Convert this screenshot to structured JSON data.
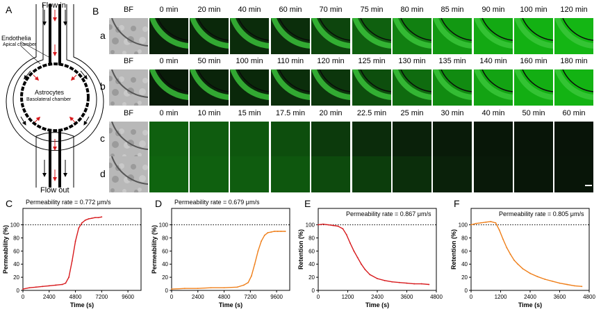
{
  "panelA": {
    "letter": "A",
    "flow_in": "Flow in",
    "flow_out": "Flow out",
    "endothelia": "Endothelia",
    "apical": "Apical chamber",
    "astrocytes": "Astrocytes",
    "basolateral": "Basolateral chamber"
  },
  "panelB": {
    "letter": "B",
    "rows": [
      {
        "label": "a",
        "times": [
          "BF",
          "0 min",
          "20 min",
          "40 min",
          "60 min",
          "70 min",
          "75 min",
          "80 min",
          "85 min",
          "90 min",
          "100 min",
          "120 min"
        ],
        "intensity": [
          0,
          0.2,
          0.25,
          0.28,
          0.3,
          0.45,
          0.6,
          0.75,
          0.85,
          0.92,
          0.95,
          0.97
        ],
        "arc": true
      },
      {
        "label": "b",
        "times": [
          "BF",
          "0 min",
          "50 min",
          "100 min",
          "110 min",
          "120 min",
          "125 min",
          "130 min",
          "135 min",
          "140 min",
          "160 min",
          "180 min"
        ],
        "intensity": [
          0,
          0.15,
          0.22,
          0.25,
          0.3,
          0.35,
          0.5,
          0.65,
          0.8,
          0.9,
          0.94,
          0.96
        ],
        "arc": true
      },
      {
        "label": "c",
        "times": [
          "BF",
          "0 min",
          "10 min",
          "15 min",
          "17.5 min",
          "20 min",
          "22.5 min",
          "25 min",
          "30 min",
          "40 min",
          "50 min",
          "60 min"
        ],
        "intensity": [
          0,
          0.6,
          0.58,
          0.55,
          0.5,
          0.38,
          0.28,
          0.2,
          0.14,
          0.1,
          0.08,
          0.07
        ],
        "arc": false
      },
      {
        "label": "d",
        "times": [],
        "intensity": [
          0,
          0.62,
          0.6,
          0.58,
          0.55,
          0.48,
          0.4,
          0.3,
          0.2,
          0.12,
          0.09,
          0.08
        ],
        "arc": false
      }
    ]
  },
  "colors": {
    "red": "#d7191c",
    "orange": "#ef7f1a",
    "fluor": "#2fae2f"
  },
  "chart_data": [
    {
      "letter": "C",
      "type": "line",
      "annotation": "Permeability rate = 0.772 μm/s",
      "xlabel": "Time (s)",
      "ylabel": "Permeability (%)",
      "xlim": [
        0,
        10800
      ],
      "ylim": [
        0,
        125
      ],
      "xticks": [
        0,
        2400,
        4800,
        7200,
        9600
      ],
      "yticks": [
        0,
        20,
        40,
        60,
        80,
        100
      ],
      "reference_line": 100,
      "color": "red",
      "x": [
        0,
        600,
        1200,
        1800,
        2400,
        3000,
        3600,
        3900,
        4200,
        4500,
        4800,
        5100,
        5400,
        5700,
        6000,
        6300,
        6600,
        6900,
        7200
      ],
      "y": [
        2,
        4,
        5,
        6,
        7,
        8,
        9,
        11,
        20,
        45,
        75,
        95,
        103,
        107,
        109,
        110,
        111,
        111,
        112
      ]
    },
    {
      "letter": "D",
      "type": "line",
      "annotation": "Permeability rate = 0.679 μm/s",
      "xlabel": "Time (s)",
      "ylabel": "Permeability (%)",
      "xlim": [
        0,
        10800
      ],
      "ylim": [
        0,
        125
      ],
      "xticks": [
        0,
        2400,
        4800,
        7200,
        9600
      ],
      "yticks": [
        0,
        20,
        40,
        60,
        80,
        100
      ],
      "reference_line": 100,
      "color": "orange",
      "x": [
        0,
        1200,
        2400,
        3600,
        4800,
        6000,
        6600,
        7000,
        7300,
        7600,
        7900,
        8200,
        8500,
        8800,
        9100,
        9400,
        9700,
        10000,
        10400
      ],
      "y": [
        2,
        3,
        3,
        4,
        4,
        5,
        8,
        12,
        22,
        40,
        60,
        75,
        84,
        88,
        89,
        90,
        90,
        90,
        90
      ]
    },
    {
      "letter": "E",
      "type": "line",
      "annotation": "Permeability rate = 0.867 μm/s",
      "xlabel": "Time (s)",
      "ylabel": "Retention (%)",
      "xlim": [
        0,
        4800
      ],
      "ylim": [
        0,
        125
      ],
      "xticks": [
        0,
        1200,
        2400,
        3600,
        4800
      ],
      "yticks": [
        0,
        20,
        40,
        60,
        80,
        100
      ],
      "reference_line": 100,
      "color": "red",
      "x": [
        0,
        200,
        400,
        600,
        800,
        1000,
        1150,
        1300,
        1450,
        1600,
        1750,
        1900,
        2100,
        2400,
        2700,
        3000,
        3300,
        3600,
        3900,
        4200,
        4500
      ],
      "y": [
        100,
        101,
        100,
        99,
        98,
        94,
        85,
        72,
        60,
        50,
        40,
        32,
        24,
        18,
        15,
        13,
        12,
        11,
        10,
        10,
        9
      ]
    },
    {
      "letter": "F",
      "type": "line",
      "annotation": "Permeability rate = 0.805 μm/s",
      "xlabel": "Time (s)",
      "ylabel": "Retention (%)",
      "xlim": [
        0,
        4800
      ],
      "ylim": [
        0,
        125
      ],
      "xticks": [
        0,
        1200,
        2400,
        3600,
        4800
      ],
      "yticks": [
        0,
        20,
        40,
        60,
        80,
        100
      ],
      "reference_line": 100,
      "color": "orange",
      "x": [
        0,
        200,
        400,
        600,
        800,
        1000,
        1150,
        1300,
        1450,
        1600,
        1750,
        1900,
        2100,
        2400,
        2700,
        3000,
        3300,
        3600,
        3900,
        4200,
        4500
      ],
      "y": [
        100,
        102,
        103,
        104,
        105,
        103,
        92,
        78,
        65,
        55,
        46,
        40,
        33,
        26,
        21,
        17,
        14,
        11,
        9,
        7,
        6
      ]
    }
  ]
}
